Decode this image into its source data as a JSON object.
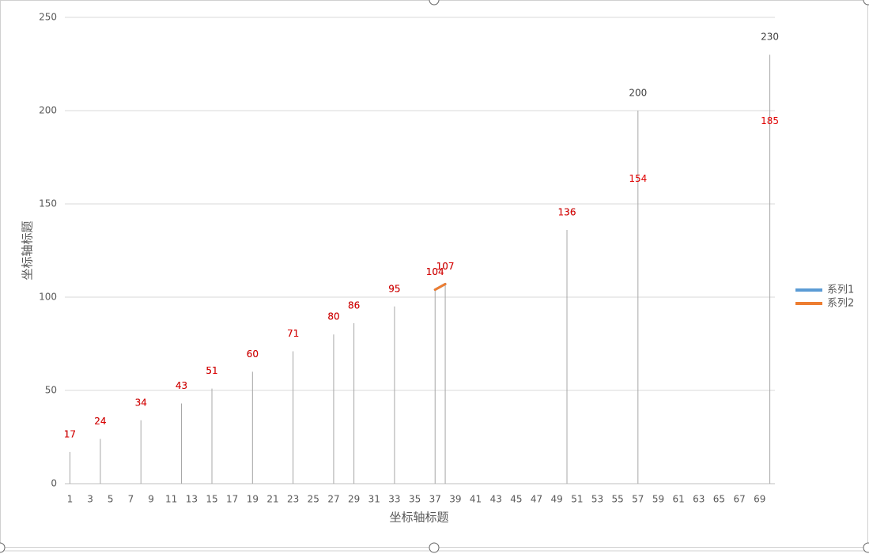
{
  "chart_data": {
    "type": "line",
    "categories": [
      1,
      null,
      3,
      null,
      5,
      null,
      7,
      null,
      9,
      null,
      11,
      null,
      13,
      null,
      15,
      null,
      17,
      null,
      19,
      null,
      21,
      null,
      23,
      null,
      25,
      null,
      27,
      null,
      29,
      null,
      31,
      null,
      33,
      null,
      35,
      null,
      37,
      null,
      39,
      null,
      41,
      null,
      43,
      null,
      45,
      null,
      47,
      null,
      49,
      null,
      51,
      null,
      53,
      null,
      55,
      null,
      57,
      null,
      59,
      null,
      61,
      null,
      63,
      null,
      65,
      null,
      67,
      null,
      69,
      null
    ],
    "series": [
      {
        "name": "系列1",
        "color": "#5b9bd5",
        "label_color": "#404040",
        "values": [
          17,
          null,
          null,
          24,
          null,
          null,
          null,
          34,
          null,
          null,
          null,
          43,
          null,
          null,
          51,
          null,
          null,
          null,
          60,
          null,
          null,
          null,
          71,
          null,
          null,
          null,
          80,
          null,
          86,
          null,
          null,
          null,
          95,
          null,
          null,
          null,
          104,
          107,
          null,
          null,
          null,
          null,
          null,
          null,
          null,
          null,
          null,
          null,
          null,
          136,
          null,
          null,
          null,
          null,
          null,
          null,
          200,
          null,
          null,
          null,
          null,
          null,
          null,
          null,
          null,
          null,
          null,
          null,
          null,
          230
        ]
      },
      {
        "name": "系列2",
        "color": "#ed7d31",
        "label_color": "#e00000",
        "values": [
          17,
          null,
          null,
          24,
          null,
          null,
          null,
          34,
          null,
          null,
          null,
          43,
          null,
          null,
          51,
          null,
          null,
          null,
          60,
          null,
          null,
          null,
          71,
          null,
          null,
          null,
          80,
          null,
          86,
          null,
          null,
          null,
          95,
          null,
          null,
          null,
          104,
          107,
          null,
          null,
          null,
          null,
          null,
          null,
          null,
          null,
          null,
          null,
          null,
          136,
          null,
          null,
          null,
          null,
          null,
          null,
          154,
          null,
          null,
          null,
          null,
          null,
          null,
          null,
          null,
          null,
          null,
          null,
          null,
          185
        ]
      }
    ],
    "x_label": "坐标轴标题",
    "y_label": "坐标轴标题",
    "ylim": [
      0,
      250
    ],
    "yticks": [
      0,
      50,
      100,
      150,
      200,
      250
    ],
    "grid": true,
    "drop_lines": true,
    "legend": "right"
  }
}
